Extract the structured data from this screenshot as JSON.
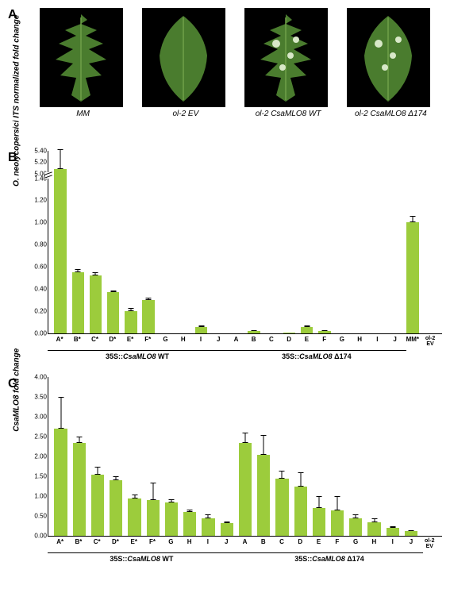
{
  "panelA": {
    "label": "A",
    "leaves": [
      {
        "label": "MM",
        "spots": false
      },
      {
        "label": "ol-2 EV",
        "spots": false
      },
      {
        "label": "ol-2 CsaMLO8 WT",
        "spots": true
      },
      {
        "label": "ol-2 CsaMLO8 Δ174",
        "spots": true
      }
    ],
    "leaf_color": "#4a7c2e",
    "leaf_highlight": "#6fa048",
    "spot_color": "#d8e8c8",
    "bg_color": "#000000"
  },
  "panelB": {
    "label": "B",
    "y_label": "O. neolycopersici ITS normalized fold change",
    "y_max_upper": 5.4,
    "y_break_low": 1.4,
    "y_break_high": 5.0,
    "y_ticks_upper": [
      5.0,
      5.2,
      5.4
    ],
    "y_ticks_lower": [
      0.0,
      0.2,
      0.4,
      0.6,
      0.8,
      1.0,
      1.2,
      1.4
    ],
    "bar_color": "#9ccc3c",
    "groups": [
      {
        "name": "35S::CsaMLO8 WT",
        "cats": [
          "A*",
          "B*",
          "C*",
          "D*",
          "E*",
          "F*",
          "G",
          "H",
          "I",
          "J"
        ],
        "vals": [
          5.08,
          0.55,
          0.52,
          0.37,
          0.2,
          0.3,
          0.0,
          0.0,
          0.06,
          0.0
        ],
        "errs": [
          0.35,
          0.03,
          0.03,
          0.02,
          0.03,
          0.02,
          0,
          0,
          0.01,
          0
        ]
      },
      {
        "name": "35S::CsaMLO8 Δ174",
        "cats": [
          "A",
          "B",
          "C",
          "D",
          "E",
          "F",
          "G",
          "H",
          "I",
          "J"
        ],
        "vals": [
          0.0,
          0.02,
          0.0,
          0.01,
          0.06,
          0.02,
          0.0,
          0.0,
          0.0,
          0.0
        ],
        "errs": [
          0,
          0.01,
          0,
          0,
          0.01,
          0.01,
          0,
          0,
          0,
          0
        ]
      },
      {
        "name": "",
        "cats": [
          "MM*"
        ],
        "vals": [
          1.0
        ],
        "errs": [
          0.06
        ]
      },
      {
        "name": "",
        "cats": [
          "ol-2 EV"
        ],
        "vals": [
          0.0
        ],
        "errs": [
          0
        ]
      }
    ]
  },
  "panelC": {
    "label": "C",
    "y_label": "CsaMLO8 fold change",
    "y_max": 4.0,
    "y_ticks": [
      0.0,
      0.5,
      1.0,
      1.5,
      2.0,
      2.5,
      3.0,
      3.5,
      4.0
    ],
    "bar_color": "#9ccc3c",
    "groups": [
      {
        "name": "35S::CsaMLO8 WT",
        "cats": [
          "A*",
          "B*",
          "C*",
          "D*",
          "E*",
          "F*",
          "G",
          "H",
          "I",
          "J"
        ],
        "vals": [
          2.7,
          2.35,
          1.55,
          1.4,
          0.95,
          0.9,
          0.85,
          0.6,
          0.45,
          0.32
        ],
        "errs": [
          0.8,
          0.15,
          0.2,
          0.1,
          0.1,
          0.45,
          0.08,
          0.07,
          0.1,
          0.04
        ]
      },
      {
        "name": "35S::CsaMLO8 Δ174",
        "cats": [
          "A",
          "B",
          "C",
          "D",
          "E",
          "F",
          "G",
          "H",
          "I",
          "J"
        ],
        "vals": [
          2.35,
          2.05,
          1.45,
          1.25,
          0.7,
          0.65,
          0.45,
          0.35,
          0.2,
          0.12
        ],
        "errs": [
          0.25,
          0.5,
          0.2,
          0.35,
          0.3,
          0.35,
          0.1,
          0.1,
          0.05,
          0.03
        ]
      },
      {
        "name": "",
        "cats": [
          "ol-2 EV"
        ],
        "vals": [
          0.0
        ],
        "errs": [
          0
        ]
      }
    ]
  }
}
